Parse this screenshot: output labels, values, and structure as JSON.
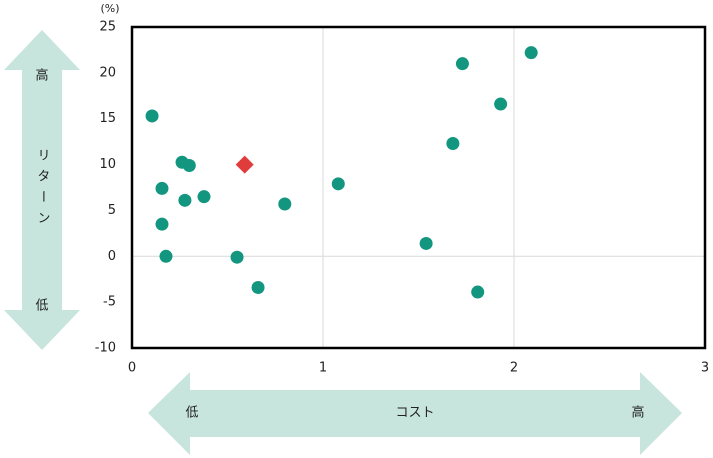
{
  "chart_data": {
    "type": "scatter",
    "y_unit": "(%)",
    "xlim": [
      0,
      3
    ],
    "xticks": [
      0,
      1,
      2,
      3
    ],
    "ylim": [
      -10,
      25
    ],
    "yticks": [
      -10,
      -5,
      0,
      5,
      10,
      15,
      20,
      25
    ],
    "grid": "x",
    "series": [
      {
        "color": "#13967f",
        "marker": "circle",
        "x": [
          0.105,
          0.262,
          0.3,
          0.157,
          0.277,
          0.377,
          0.157,
          0.178,
          0.55,
          0.66,
          0.8,
          1.08,
          1.54,
          1.68,
          1.81,
          1.73,
          1.93,
          2.09
        ],
        "y": [
          15.3,
          10.25,
          9.9,
          7.4,
          6.1,
          6.5,
          3.5,
          0,
          -0.1,
          -3.4,
          5.7,
          7.9,
          1.4,
          12.3,
          -3.9,
          21.0,
          16.6,
          22.2
        ]
      },
      {
        "color": "#e03c3c",
        "marker": "diamond",
        "x": [
          0.59
        ],
        "y": [
          10.0
        ]
      }
    ],
    "y_arrow": {
      "high": "高",
      "label": "リターン",
      "low": "低"
    },
    "x_arrow": {
      "low": "低",
      "label": "コスト",
      "high": "高"
    }
  }
}
